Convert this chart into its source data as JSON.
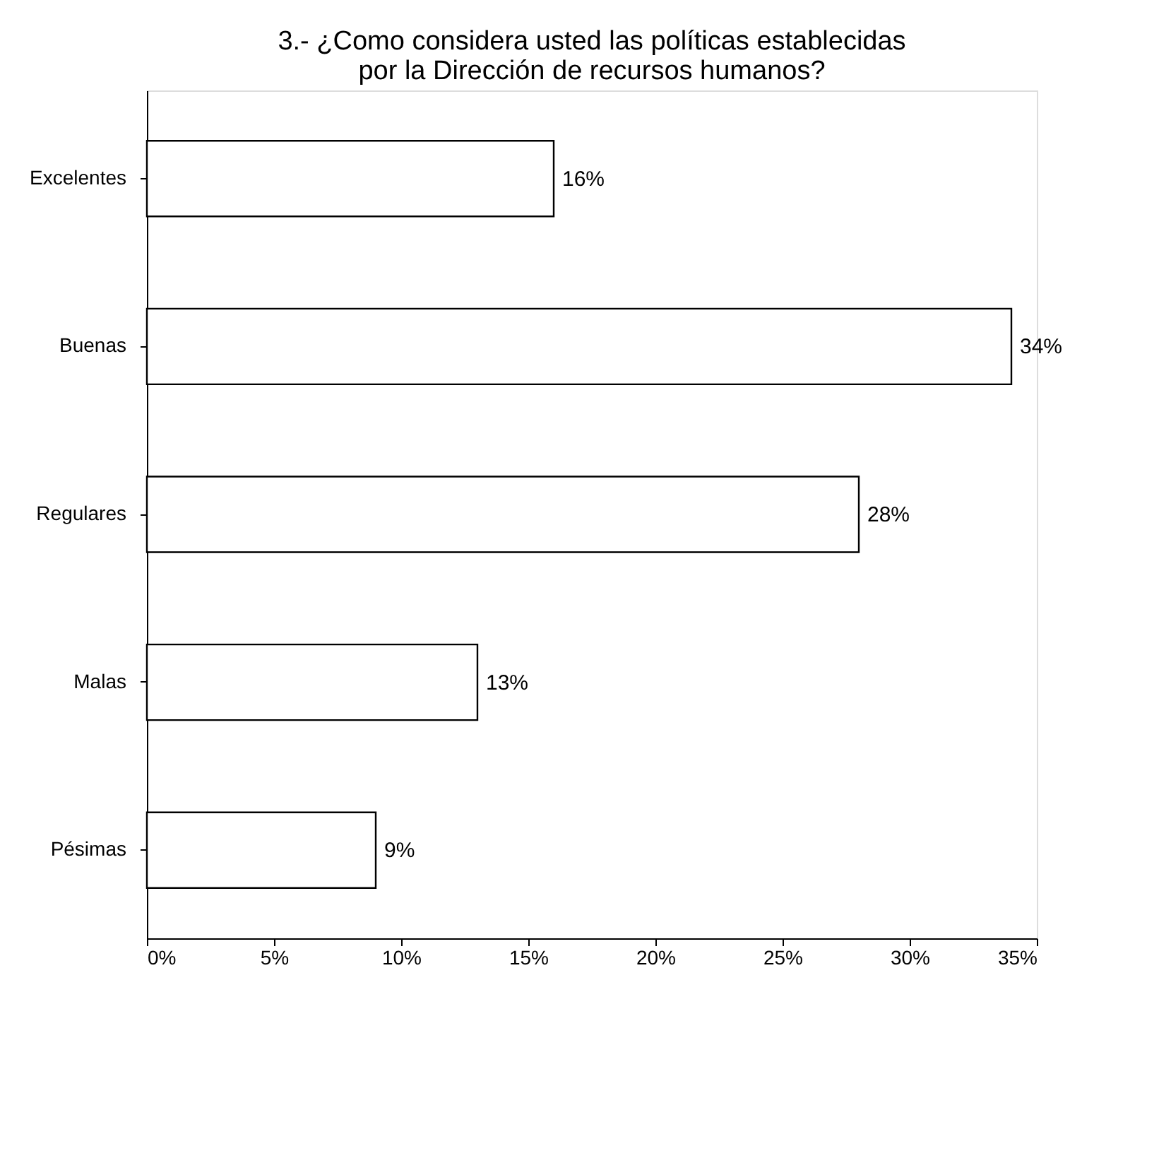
{
  "chart_data": {
    "type": "bar",
    "orientation": "horizontal",
    "title": [
      "3.- ¿Como considera usted las políticas establecidas",
      "por la Dirección de recursos humanos?"
    ],
    "categories": [
      "Excelentes",
      "Buenas",
      "Regulares",
      "Malas",
      "Pésimas"
    ],
    "values": [
      16,
      34,
      28,
      13,
      9
    ],
    "value_labels": [
      "16%",
      "34%",
      "28%",
      "13%",
      "9%"
    ],
    "color": "#ffffff",
    "xlim": [
      0,
      35
    ],
    "xticks": [
      {
        "value": 0,
        "label": "0%"
      },
      {
        "value": 5,
        "label": "5%"
      },
      {
        "value": 10,
        "label": "10%"
      },
      {
        "value": 15,
        "label": "15%"
      },
      {
        "value": 20,
        "label": "20%"
      },
      {
        "value": 25,
        "label": "25%"
      },
      {
        "value": 30,
        "label": "30%"
      },
      {
        "value": 35,
        "label": "35%"
      }
    ],
    "grid": false
  }
}
